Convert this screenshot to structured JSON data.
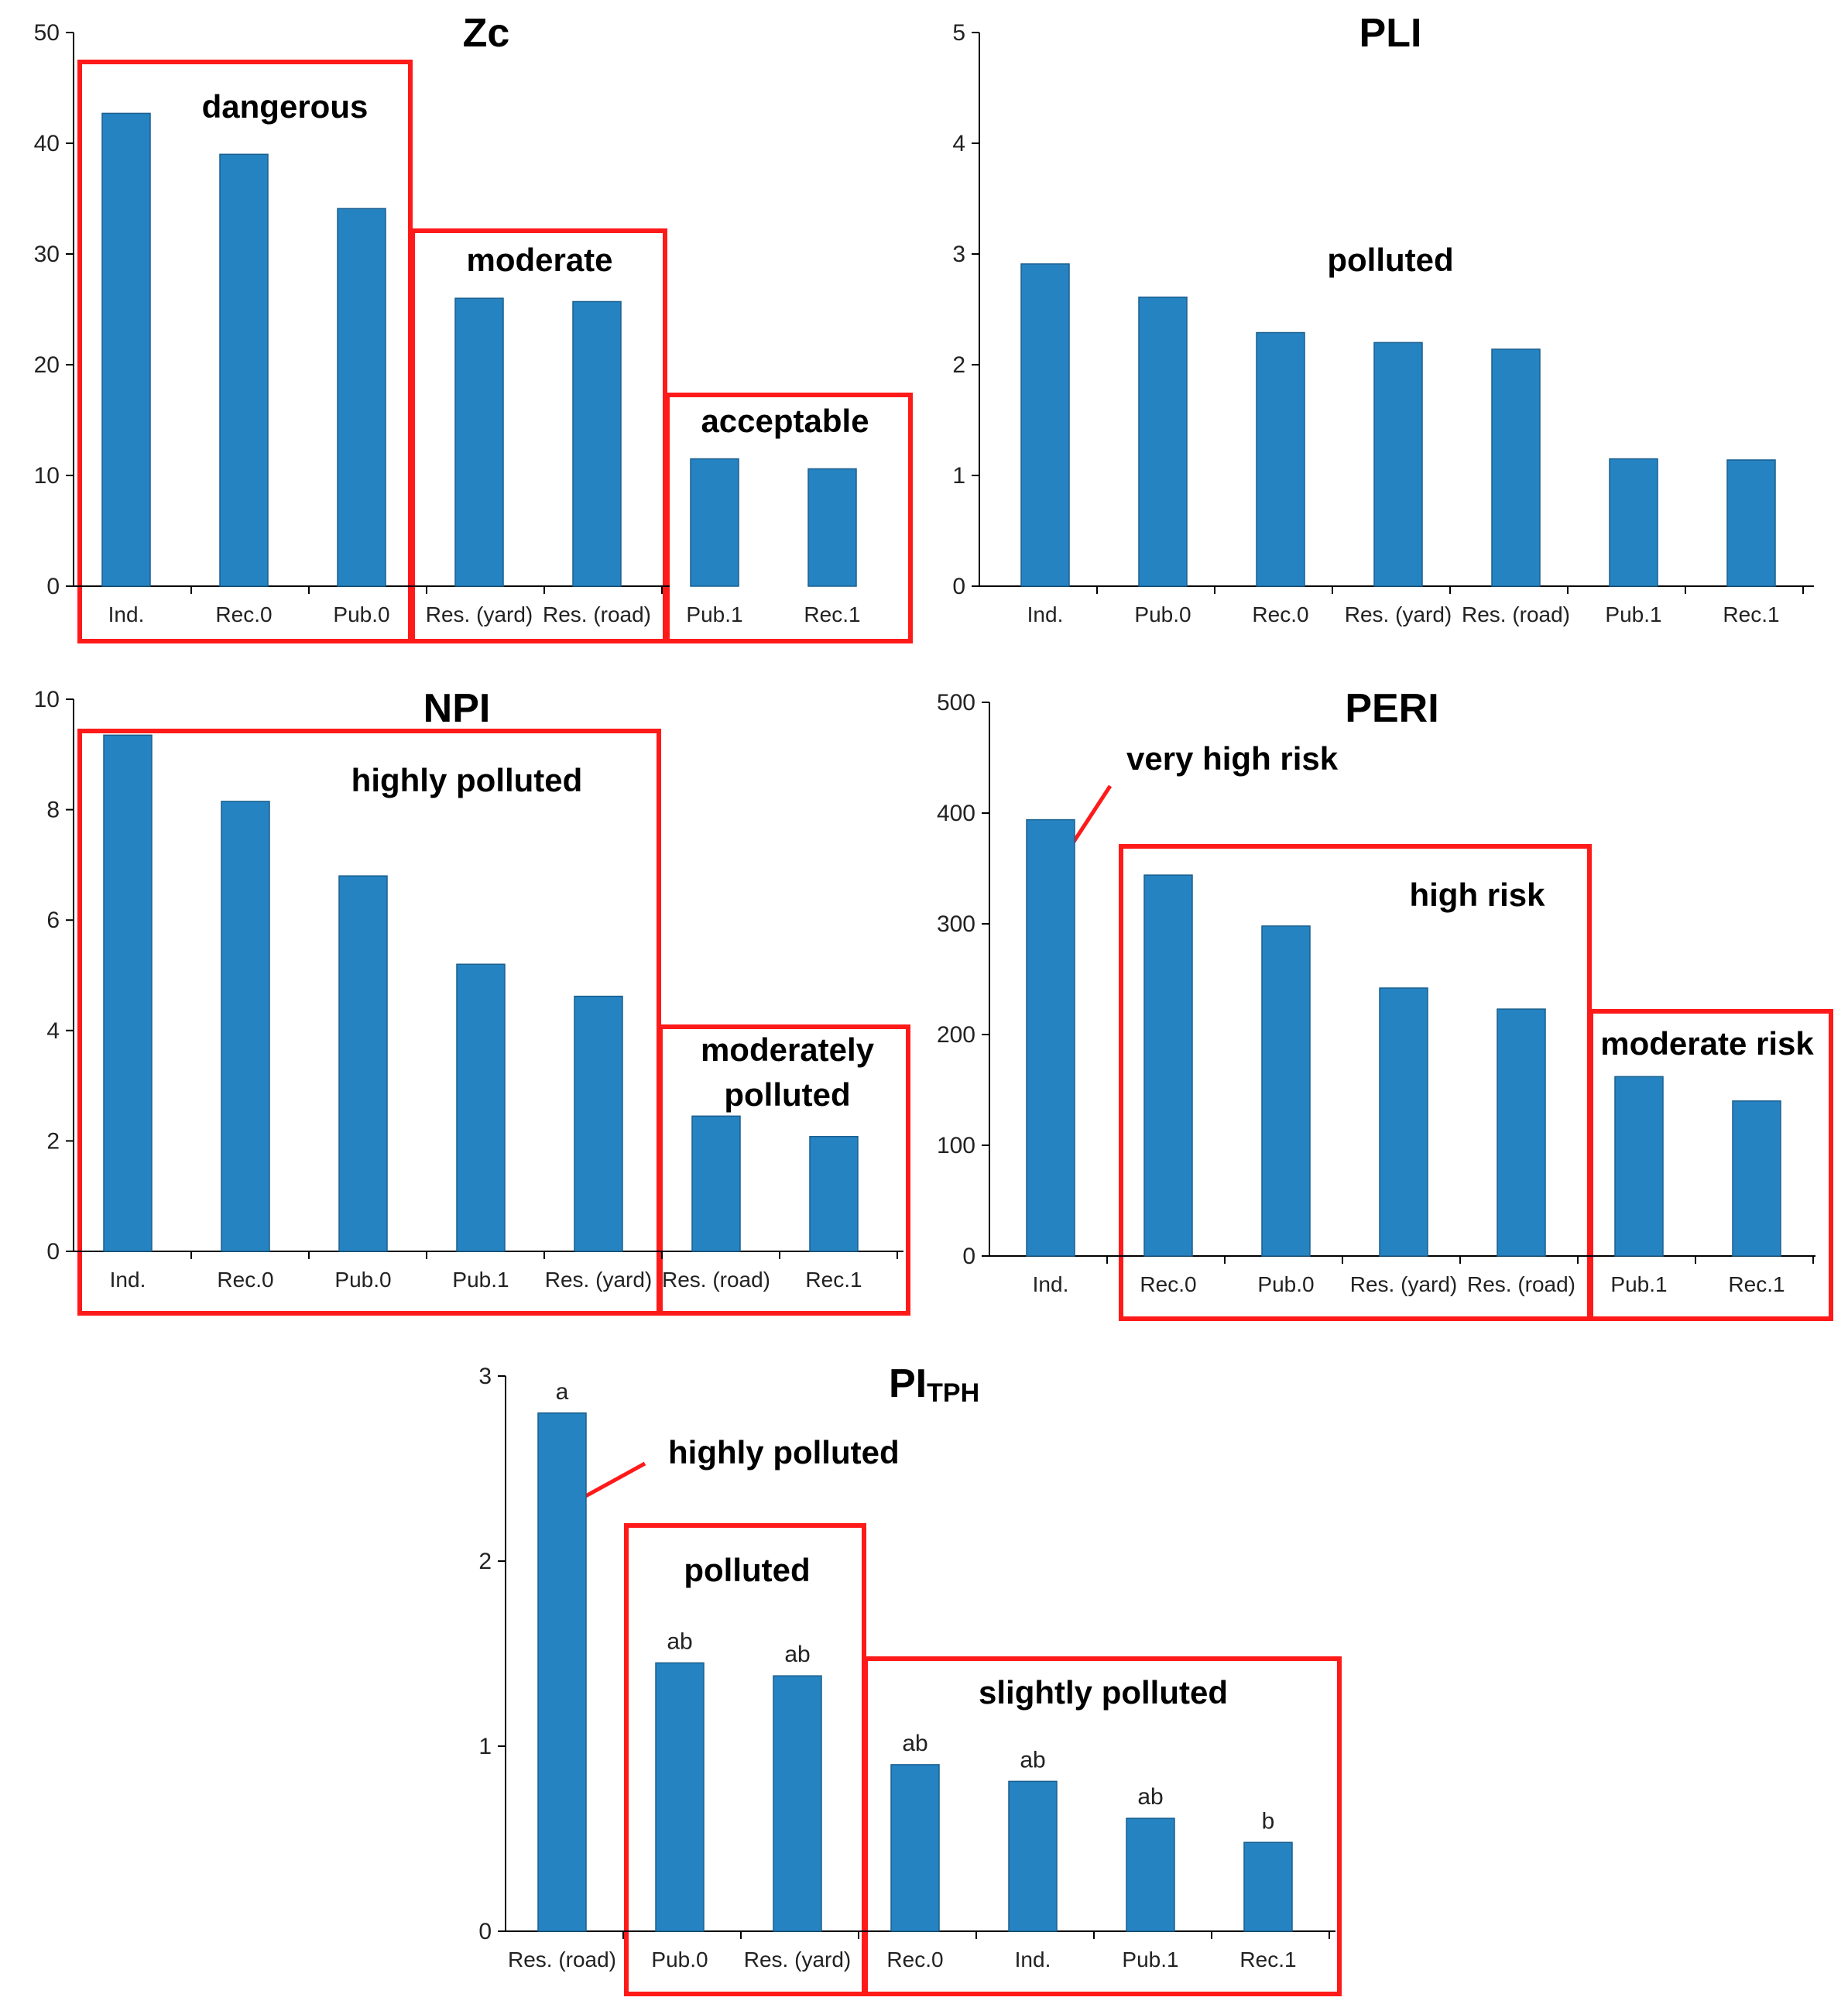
{
  "colors": {
    "bar": "#2583c2",
    "bar_edge": "#1a5f8e",
    "zone": "#ff1a1a",
    "axis": "#000000"
  },
  "chart_data": [
    {
      "id": "zc",
      "type": "bar",
      "title": "Zc",
      "ylim": [
        0,
        50
      ],
      "yticks": [
        "0",
        "10",
        "20",
        "30",
        "40",
        "50"
      ],
      "categories": [
        "Ind.",
        "Rec.0",
        "Pub.0",
        "Res. (yard)",
        "Res. (road)",
        "Pub.1",
        "Rec.1"
      ],
      "values": [
        42.7,
        39.0,
        34.1,
        26.0,
        25.7,
        11.5,
        10.6
      ],
      "zones": [
        {
          "label": "dangerous",
          "from": 0,
          "to": 2
        },
        {
          "label": "moderate",
          "from": 3,
          "to": 4
        },
        {
          "label": "acceptable",
          "from": 5,
          "to": 6
        }
      ]
    },
    {
      "id": "pli",
      "type": "bar",
      "title": "PLI",
      "ylim": [
        0,
        5
      ],
      "yticks": [
        "0",
        "1",
        "2",
        "3",
        "4",
        "5"
      ],
      "categories": [
        "Ind.",
        "Pub.0",
        "Rec.0",
        "Res. (yard)",
        "Res. (road)",
        "Pub.1",
        "Rec.1"
      ],
      "values": [
        2.91,
        2.61,
        2.29,
        2.2,
        2.14,
        1.15,
        1.14
      ],
      "zones": [],
      "annotations": [
        {
          "label": "polluted"
        }
      ]
    },
    {
      "id": "npi",
      "type": "bar",
      "title": "NPI",
      "ylim": [
        0,
        10
      ],
      "yticks": [
        "0",
        "2",
        "4",
        "6",
        "8",
        "10"
      ],
      "categories": [
        "Ind.",
        "Rec.0",
        "Pub.0",
        "Pub.1",
        "Res. (yard)",
        "Res. (road)",
        "Rec.1"
      ],
      "values": [
        9.35,
        8.15,
        6.8,
        5.2,
        4.62,
        2.45,
        2.08
      ],
      "zones": [
        {
          "label": "highly polluted",
          "from": 0,
          "to": 4
        },
        {
          "label_lines": [
            "moderately",
            "polluted"
          ],
          "from": 5,
          "to": 6
        }
      ]
    },
    {
      "id": "peri",
      "type": "bar",
      "title": "PERI",
      "ylim": [
        0,
        500
      ],
      "yticks": [
        "0",
        "100",
        "200",
        "300",
        "400",
        "500"
      ],
      "categories": [
        "Ind.",
        "Rec.0",
        "Pub.0",
        "Res. (yard)",
        "Res. (road)",
        "Pub.1",
        "Rec.1"
      ],
      "values": [
        394,
        344,
        298,
        242,
        223,
        162,
        140
      ],
      "zones": [
        {
          "label": "high risk",
          "from": 1,
          "to": 4
        },
        {
          "label": "moderate risk",
          "from": 5,
          "to": 6
        }
      ],
      "annotations": [
        {
          "label": "very high risk",
          "bar": 0
        }
      ]
    },
    {
      "id": "pitph",
      "type": "bar",
      "title": "PI",
      "title_subscript": "TPH",
      "ylim": [
        0,
        3
      ],
      "yticks": [
        "0",
        "1",
        "2",
        "3"
      ],
      "categories": [
        "Res. (road)",
        "Pub.0",
        "Res. (yard)",
        "Rec.0",
        "Ind.",
        "Pub.1",
        "Rec.1"
      ],
      "values": [
        2.8,
        1.45,
        1.38,
        0.9,
        0.81,
        0.61,
        0.48
      ],
      "significance": [
        "a",
        "ab",
        "ab",
        "ab",
        "ab",
        "ab",
        "b"
      ],
      "zones": [
        {
          "label": "polluted",
          "from": 1,
          "to": 2
        },
        {
          "label": "slightly polluted",
          "from": 3,
          "to": 6
        }
      ],
      "annotations": [
        {
          "label": "highly polluted",
          "bar": 0
        }
      ]
    }
  ]
}
